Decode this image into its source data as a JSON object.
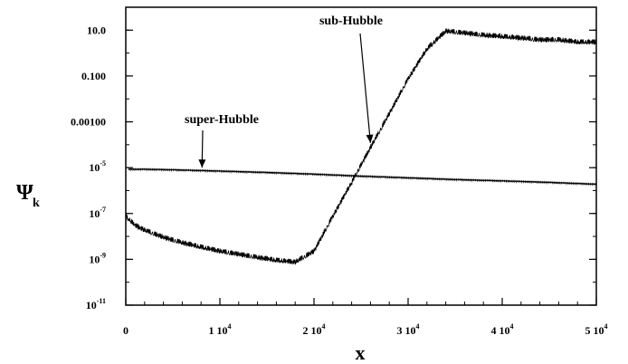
{
  "chart_data": {
    "type": "line",
    "x_scale": "linear",
    "y_scale": "log",
    "xlim": [
      0,
      50000
    ],
    "ylim": [
      1e-11,
      100
    ],
    "xlabel": "x",
    "ylabel_main": "Ψ",
    "ylabel_sub": "k",
    "x_ticks": [
      {
        "value": 0,
        "base": "0",
        "exp": ""
      },
      {
        "value": 10000,
        "base": "1 10",
        "exp": "4"
      },
      {
        "value": 20000,
        "base": "2 10",
        "exp": "4"
      },
      {
        "value": 30000,
        "base": "3 10",
        "exp": "4"
      },
      {
        "value": 40000,
        "base": "4 10",
        "exp": "4"
      },
      {
        "value": 50000,
        "base": "5 10",
        "exp": "4"
      }
    ],
    "y_ticks": [
      {
        "value": 1e-11,
        "base": "10",
        "exp": "-11"
      },
      {
        "value": 1e-09,
        "base": "10",
        "exp": "-9"
      },
      {
        "value": 1e-07,
        "base": "10",
        "exp": "-7"
      },
      {
        "value": 1e-05,
        "base": "10",
        "exp": "-5"
      },
      {
        "value": 0.001,
        "base": "0.00100",
        "exp": ""
      },
      {
        "value": 0.1,
        "base": "0.100",
        "exp": ""
      },
      {
        "value": 10,
        "base": "10.0",
        "exp": ""
      }
    ],
    "series": [
      {
        "x": [
          0,
          1000,
          2000,
          4000,
          6000,
          8000,
          10000,
          12000,
          14000,
          16000,
          18000,
          20000,
          22000,
          24000,
          26000,
          28000,
          30000,
          32000,
          34000,
          36000,
          38000,
          40000,
          42000,
          44000,
          46000,
          48000,
          50000
        ],
        "y": [
          1e-07,
          4e-08,
          2.5e-08,
          1.2e-08,
          7e-09,
          4.5e-09,
          3e-09,
          2.2e-09,
          1.6e-09,
          1.2e-09,
          1e-09,
          3e-09,
          1e-07,
          3e-06,
          0.0001,
          0.003,
          0.1,
          2,
          12,
          10,
          8,
          7,
          6,
          5,
          5,
          4,
          4
        ],
        "oscillating": true
      },
      {
        "x": [
          300,
          2000,
          5000,
          10000,
          15000,
          20000,
          25000,
          30000,
          35000,
          40000,
          45000,
          50000
        ],
        "y": [
          9e-06,
          9e-06,
          8.5e-06,
          7.5e-06,
          6.5e-06,
          5.5e-06,
          4.5e-06,
          3.8e-06,
          3.2e-06,
          2.8e-06,
          2.4e-06,
          2e-06
        ],
        "oscillating": true
      }
    ],
    "annotations": [
      {
        "text": "sub-Hubble",
        "arrow_to": {
          "x": 26000,
          "y": 0.00012
        }
      },
      {
        "text": "super-Hubble",
        "arrow_to": {
          "x": 8100,
          "y": 1e-05
        }
      }
    ],
    "grid": false,
    "legend": "none"
  }
}
